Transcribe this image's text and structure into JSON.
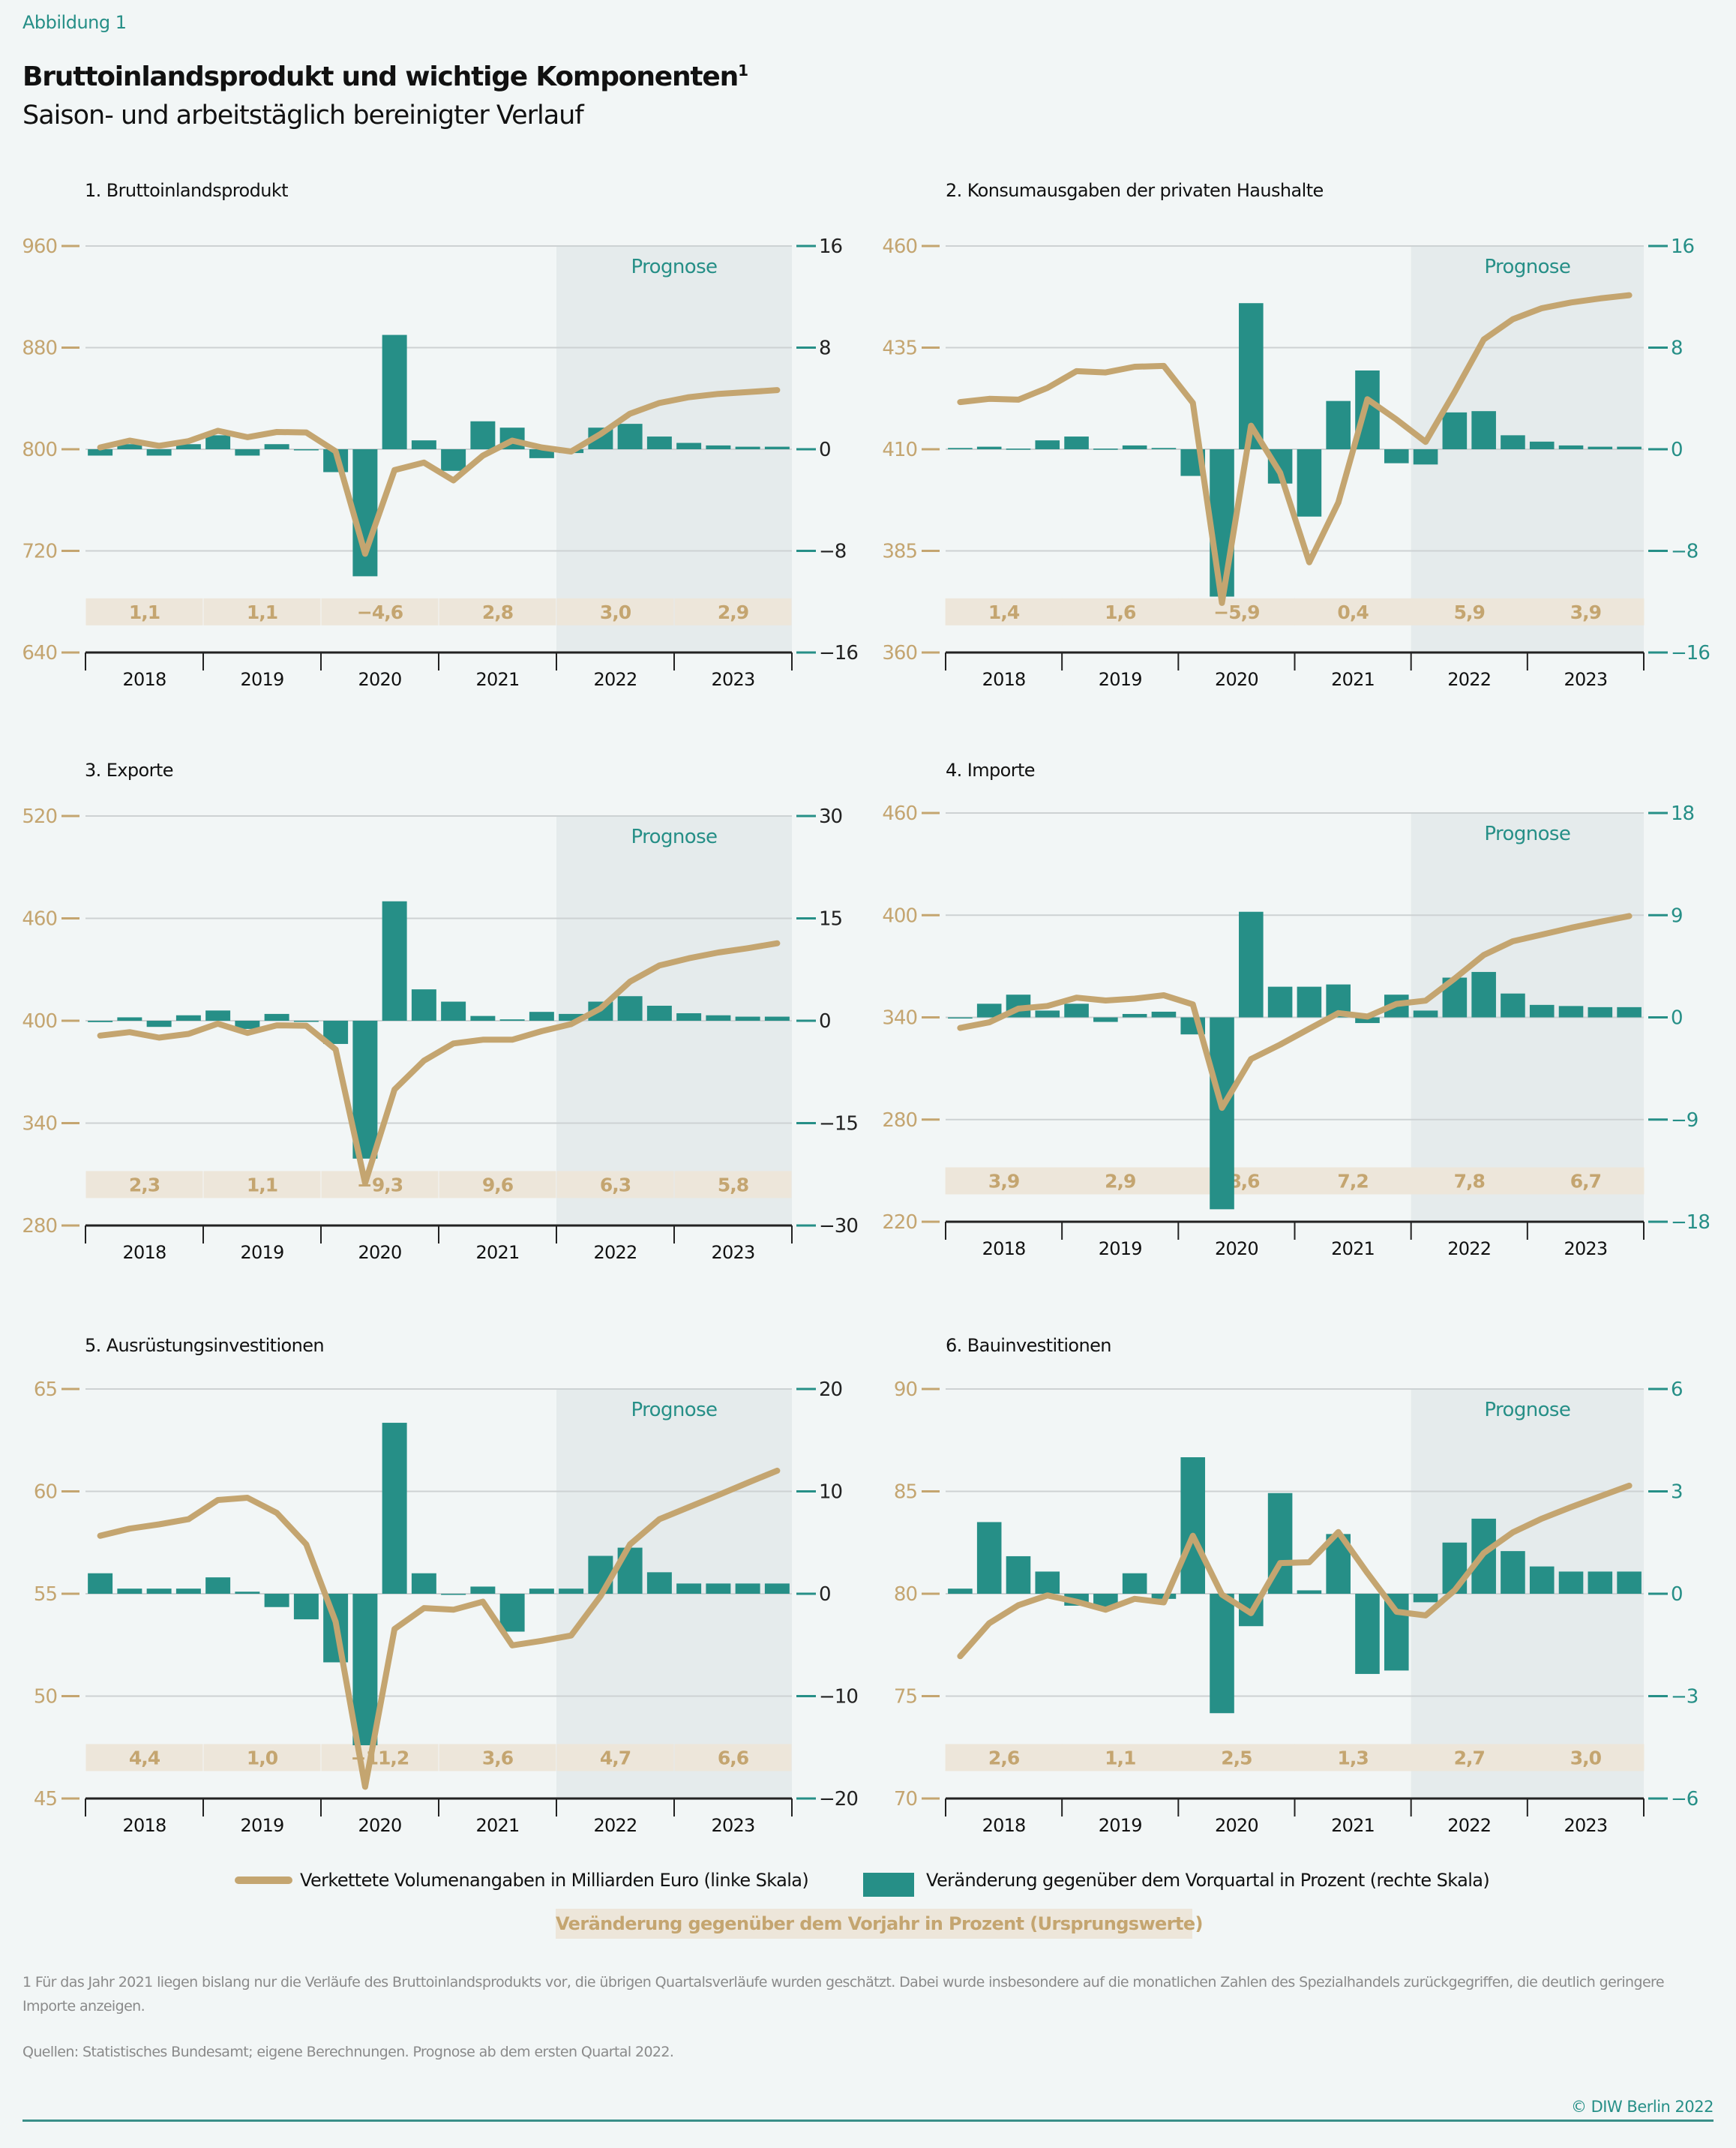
{
  "figure_label": "Abbildung 1",
  "title": "Bruttoinlandsprodukt und wichtige Komponenten",
  "title_footnote_mark": "1",
  "subtitle": "Saison- und arbeitstäglich bereinigter Verlauf",
  "colors": {
    "line": "#c4a570",
    "bars": "#268f87",
    "yoy_box": "#ede6da",
    "prognose_shade": "#e5ebec",
    "background": "#f2f6f6"
  },
  "prognose_label": "Prognose",
  "legend": {
    "line": "Verkettete Volumenangaben in Milliarden Euro (linke Skala)",
    "bars": "Veränderung gegenüber dem Vorquartal in Prozent (rechte Skala)",
    "yoy": "Veränderung gegenüber dem Vorjahr in Prozent (Ursprungswerte)"
  },
  "footnote": "1  Für das Jahr 2021 liegen bislang nur die Verläufe des Bruttoinlandsprodukts vor, die übrigen Quartalsverläufe wurden geschätzt. Dabei wurde insbesondere auf die monatlichen Zahlen des Spezialhandels zurückgegriffen, die deutlich geringere",
  "footnote_cont": "Importe anzeigen.",
  "sources": "Quellen: Statistisches Bundesamt; eigene Berechnungen. Prognose ab dem ersten Quartal 2022.",
  "copyright": "© DIW Berlin 2022",
  "chart_data": [
    {
      "type": "bar+line",
      "title": "1. Bruttoinlandsprodukt",
      "years": [
        "2018",
        "2019",
        "2020",
        "2021",
        "2022",
        "2023"
      ],
      "forecast_from": "2022",
      "left_axis": {
        "ylim": [
          640,
          960
        ],
        "ticks": [
          640,
          720,
          800,
          880,
          960
        ]
      },
      "right_axis": {
        "ylim": [
          -16,
          16
        ],
        "ticks": [
          -16,
          -8,
          0,
          8,
          16
        ]
      },
      "grid": true,
      "yoy": [
        "1,1",
        "1,1",
        "−4,6",
        "2,8",
        "3,0",
        "2,9"
      ],
      "line": [
        801.4,
        806.8,
        802.7,
        806.4,
        814.5,
        809.5,
        813.6,
        813.2,
        798.4,
        717.7,
        783.6,
        789.5,
        775.5,
        795.0,
        806.8,
        801.4,
        798.2,
        812.0,
        828.0,
        836.4,
        841.0,
        843.6,
        845.0,
        846.6
      ],
      "bars": [
        -0.5,
        0.4,
        -0.5,
        0.4,
        1.1,
        -0.5,
        0.4,
        -0.05,
        -1.8,
        -10.0,
        9.0,
        0.7,
        -1.7,
        2.2,
        1.7,
        -0.7,
        -0.3,
        1.7,
        2.0,
        1.0,
        0.5,
        0.3,
        0.2,
        0.2
      ]
    },
    {
      "type": "bar+line",
      "title": "2. Konsumausgaben der privaten Haushalte",
      "years": [
        "2018",
        "2019",
        "2020",
        "2021",
        "2022",
        "2023"
      ],
      "forecast_from": "2022",
      "left_axis": {
        "ylim": [
          360,
          460
        ],
        "ticks": [
          360,
          385,
          410,
          435,
          460
        ]
      },
      "right_axis": {
        "ylim": [
          -16,
          16
        ],
        "ticks": [
          -16,
          -8,
          0,
          8,
          16
        ]
      },
      "grid": true,
      "yoy": [
        "1,4",
        "1,6",
        "−5,9",
        "0,4",
        "5,9",
        "3,9"
      ],
      "line": [
        421.6,
        422.4,
        422.2,
        425.1,
        429.2,
        428.9,
        430.3,
        430.5,
        421.4,
        372.2,
        415.8,
        404.2,
        382.2,
        396.9,
        422.3,
        417.3,
        411.8,
        424.1,
        437.0,
        442.0,
        444.7,
        446.1,
        447.1,
        447.9
      ],
      "bars": [
        0.1,
        0.2,
        0.05,
        0.7,
        1.0,
        0.05,
        0.3,
        0.1,
        -2.1,
        -11.6,
        11.5,
        -2.7,
        -5.3,
        3.8,
        6.2,
        -1.1,
        -1.2,
        2.9,
        3.0,
        1.1,
        0.6,
        0.3,
        0.2,
        0.2
      ]
    },
    {
      "type": "bar+line",
      "title": "3. Exporte",
      "years": [
        "2018",
        "2019",
        "2020",
        "2021",
        "2022",
        "2023"
      ],
      "forecast_from": "2022",
      "left_axis": {
        "ylim": [
          280,
          520
        ],
        "ticks": [
          280,
          340,
          400,
          460,
          520
        ]
      },
      "right_axis": {
        "ylim": [
          -30,
          30
        ],
        "ticks": [
          -30,
          -15,
          0,
          15,
          30
        ]
      },
      "grid": true,
      "yoy": [
        "2,3",
        "1,1",
        "−9,3",
        "9,6",
        "6,3",
        "5,8"
      ],
      "line": [
        391.3,
        393.3,
        390.1,
        392.3,
        398.3,
        392.9,
        397.3,
        397.1,
        383.2,
        304.9,
        359.7,
        376.6,
        386.7,
        388.9,
        388.9,
        393.9,
        398.0,
        407.2,
        422.9,
        432.4,
        436.6,
        440.0,
        442.5,
        445.4
      ],
      "bars": [
        -0.2,
        0.5,
        -0.9,
        0.8,
        1.5,
        -1.2,
        1.0,
        -0.1,
        -3.4,
        -20.2,
        17.5,
        4.6,
        2.8,
        0.7,
        0.2,
        1.3,
        1.0,
        2.8,
        3.6,
        2.2,
        1.1,
        0.8,
        0.6,
        0.6
      ]
    },
    {
      "type": "bar+line",
      "title": "4. Importe",
      "years": [
        "2018",
        "2019",
        "2020",
        "2021",
        "2022",
        "2023"
      ],
      "forecast_from": "2022",
      "left_axis": {
        "ylim": [
          220,
          460
        ],
        "ticks": [
          220,
          280,
          340,
          400,
          460
        ]
      },
      "right_axis": {
        "ylim": [
          -18,
          18
        ],
        "ticks": [
          -18,
          -9,
          0,
          9,
          18
        ]
      },
      "grid": true,
      "yoy": [
        "3,9",
        "2,9",
        "−8,6",
        "7,2",
        "7,8",
        "6,7"
      ],
      "line": [
        333.8,
        337.1,
        345.1,
        346.7,
        351.6,
        349.9,
        351.0,
        353.0,
        347.6,
        286.9,
        315.5,
        324.0,
        333.3,
        342.5,
        340.5,
        347.9,
        349.8,
        362.8,
        376.6,
        384.7,
        388.6,
        392.6,
        396.1,
        399.5
      ],
      "bars": [
        -0.1,
        1.2,
        2.0,
        0.6,
        1.2,
        -0.4,
        0.3,
        0.5,
        -1.5,
        -16.9,
        9.3,
        2.7,
        2.7,
        2.9,
        -0.5,
        2.0,
        0.6,
        3.5,
        4.0,
        2.1,
        1.1,
        1.0,
        0.9,
        0.9
      ]
    },
    {
      "type": "bar+line",
      "title": "5. Ausrüstungsinvestitionen",
      "years": [
        "2018",
        "2019",
        "2020",
        "2021",
        "2022",
        "2023"
      ],
      "forecast_from": "2022",
      "left_axis": {
        "ylim": [
          45,
          65
        ],
        "ticks": [
          45,
          50,
          55,
          60,
          65
        ]
      },
      "right_axis": {
        "ylim": [
          -20,
          20
        ],
        "ticks": [
          -20,
          -10,
          0,
          10,
          20
        ]
      },
      "grid": true,
      "yoy": [
        "4,4",
        "1,0",
        "−11,2",
        "3,6",
        "4,7",
        "6,6"
      ],
      "line": [
        57.83,
        58.18,
        58.39,
        58.64,
        59.58,
        59.69,
        58.95,
        57.41,
        53.63,
        45.57,
        53.28,
        54.3,
        54.22,
        54.61,
        52.48,
        52.7,
        52.96,
        54.89,
        57.41,
        58.64,
        59.23,
        59.82,
        60.42,
        61.01
      ],
      "bars": [
        2.0,
        0.5,
        0.5,
        0.5,
        1.6,
        0.2,
        -1.3,
        -2.5,
        -6.7,
        -14.8,
        16.7,
        2.0,
        -0.05,
        0.7,
        -3.7,
        0.5,
        0.5,
        3.7,
        4.5,
        2.1,
        1.0,
        1.0,
        1.0,
        1.0
      ]
    },
    {
      "type": "bar+line",
      "title": "6. Bauinvestitionen",
      "years": [
        "2018",
        "2019",
        "2020",
        "2021",
        "2022",
        "2023"
      ],
      "forecast_from": "2022",
      "left_axis": {
        "ylim": [
          70,
          90
        ],
        "ticks": [
          70,
          75,
          80,
          85,
          90
        ]
      },
      "right_axis": {
        "ylim": [
          -6,
          6
        ],
        "ticks": [
          -6,
          -3,
          0,
          3,
          6
        ]
      },
      "grid": true,
      "yoy": [
        "2,6",
        "1,1",
        "2,5",
        "1,3",
        "2,7",
        "3,0"
      ],
      "line": [
        76.95,
        78.56,
        79.44,
        79.92,
        79.61,
        79.22,
        79.75,
        79.58,
        82.83,
        79.96,
        79.05,
        81.5,
        81.54,
        83.01,
        81.01,
        79.12,
        78.94,
        80.17,
        81.99,
        83.0,
        83.67,
        84.23,
        84.76,
        85.28
      ],
      "bars": [
        0.15,
        2.1,
        1.1,
        0.65,
        -0.35,
        -0.4,
        0.6,
        -0.15,
        4.0,
        -3.5,
        -0.95,
        2.95,
        0.1,
        1.75,
        -2.35,
        -2.25,
        -0.25,
        1.5,
        2.2,
        1.25,
        0.8,
        0.65,
        0.65,
        0.65
      ]
    }
  ]
}
